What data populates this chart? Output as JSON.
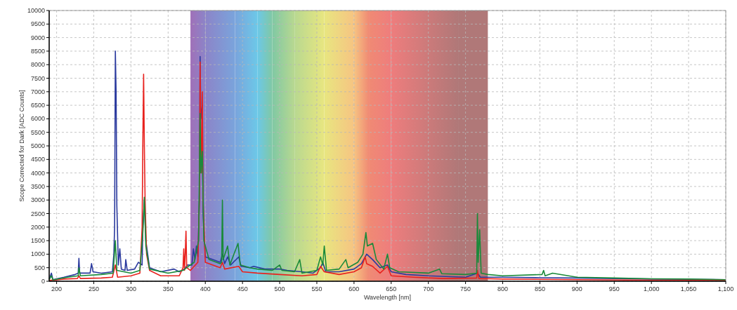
{
  "chart_data": {
    "type": "line",
    "xlabel": "Wavelength [nm]",
    "ylabel": "Scope Corrected for Dark [ADC Counts]",
    "xlim": [
      190,
      1100
    ],
    "ylim": [
      0,
      10000
    ],
    "xticks": [
      200,
      250,
      300,
      350,
      400,
      450,
      500,
      550,
      600,
      650,
      700,
      750,
      800,
      850,
      900,
      950,
      {
        "value": 1000,
        "label": "1,000"
      },
      {
        "value": 1050,
        "label": "1,050"
      },
      {
        "value": 1100,
        "label": "1,100"
      }
    ],
    "yticks": [
      0,
      500,
      1000,
      1500,
      2000,
      2500,
      3000,
      3500,
      4000,
      4500,
      5000,
      5500,
      6000,
      6500,
      7000,
      7500,
      8000,
      8500,
      9000,
      9500,
      10000
    ],
    "grid": true,
    "line_style": "solid",
    "marker": "none",
    "bands": [
      {
        "axis": "x",
        "from": 380,
        "to": 400,
        "color": "#a070b8"
      },
      {
        "axis": "x",
        "from": 400,
        "to": 440,
        "color": "#8c84c8"
      },
      {
        "axis": "x",
        "from": 440,
        "to": 470,
        "color": "#7aa4dc"
      },
      {
        "axis": "x",
        "from": 470,
        "to": 490,
        "color": "#6cc8e8"
      },
      {
        "axis": "x",
        "from": 490,
        "to": 520,
        "color": "#80c8a4"
      },
      {
        "axis": "x",
        "from": 520,
        "to": 560,
        "color": "#b8d890"
      },
      {
        "axis": "x",
        "from": 560,
        "to": 600,
        "color": "#e8e680"
      },
      {
        "axis": "x",
        "from": 600,
        "to": 620,
        "color": "#f6c482"
      },
      {
        "axis": "x",
        "from": 620,
        "to": 650,
        "color": "#f08a74"
      },
      {
        "axis": "x",
        "from": 650,
        "to": 740,
        "color": "#ee7d7d"
      },
      {
        "axis": "x",
        "from": 740,
        "to": 780,
        "color": "#b07878"
      }
    ],
    "series": [
      {
        "color": "#2b3a9e",
        "x": [
          190,
          193,
          195,
          210,
          225,
          229,
          230,
          231,
          245,
          247,
          249,
          260,
          275,
          277,
          278,
          279,
          280,
          281,
          283,
          285,
          287,
          292,
          293,
          295,
          305,
          310,
          315,
          316,
          318,
          320,
          325,
          340,
          358,
          365,
          372,
          376,
          382,
          384,
          386,
          388,
          390,
          392,
          393,
          394,
          396,
          397,
          400,
          410,
          420,
          423,
          426,
          430,
          434,
          445,
          448,
          460,
          465,
          480,
          500,
          510,
          530,
          545,
          555,
          558,
          562,
          580,
          600,
          610,
          617,
          625,
          635,
          645,
          650,
          670,
          700,
          730,
          750,
          766,
          770,
          800,
          850,
          900,
          950,
          1000,
          1050,
          1100
        ],
        "values": [
          80,
          300,
          60,
          150,
          250,
          300,
          850,
          300,
          300,
          650,
          350,
          300,
          350,
          1000,
          2000,
          8500,
          7000,
          2800,
          600,
          1200,
          450,
          400,
          800,
          400,
          450,
          700,
          600,
          2000,
          3000,
          1500,
          500,
          350,
          450,
          350,
          450,
          600,
          600,
          1200,
          800,
          1300,
          900,
          3000,
          8300,
          6000,
          6500,
          2500,
          900,
          800,
          700,
          1000,
          650,
          900,
          600,
          900,
          550,
          500,
          550,
          450,
          450,
          400,
          350,
          300,
          500,
          700,
          350,
          350,
          450,
          650,
          1000,
          800,
          500,
          600,
          350,
          250,
          200,
          170,
          150,
          300,
          150,
          150,
          130,
          120,
          100,
          80,
          70,
          60
        ]
      },
      {
        "color": "#e8221e",
        "x": [
          190,
          210,
          228,
          230,
          232,
          260,
          275,
          279,
          282,
          300,
          312,
          315,
          316,
          317,
          318,
          319,
          321,
          325,
          340,
          365,
          370,
          371,
          372,
          373,
          374,
          375,
          380,
          390,
          392,
          393,
          394,
          395,
          396,
          397,
          400,
          420,
          423,
          426,
          445,
          450,
          470,
          500,
          530,
          550,
          555,
          560,
          580,
          600,
          610,
          615,
          617,
          625,
          635,
          645,
          650,
          680,
          720,
          765,
          766,
          768,
          800,
          900,
          1000,
          1100
        ],
        "values": [
          30,
          80,
          100,
          200,
          100,
          120,
          150,
          600,
          150,
          200,
          300,
          2000,
          5200,
          7650,
          5000,
          3000,
          1000,
          400,
          200,
          200,
          500,
          1200,
          400,
          1000,
          1850,
          500,
          400,
          700,
          3000,
          8100,
          5000,
          4000,
          7000,
          3000,
          700,
          500,
          700,
          450,
          550,
          350,
          300,
          250,
          200,
          250,
          550,
          350,
          250,
          350,
          500,
          900,
          650,
          550,
          300,
          550,
          200,
          150,
          100,
          120,
          400,
          100,
          80,
          60,
          40,
          30
        ]
      },
      {
        "color": "#1a8a3a",
        "x": [
          190,
          193,
          195,
          215,
          229,
          230,
          232,
          260,
          276,
          279,
          281,
          300,
          312,
          316,
          318,
          320,
          325,
          350,
          370,
          375,
          385,
          391,
          393,
          394,
          396,
          398,
          405,
          420,
          422,
          423,
          424,
          430,
          433,
          444,
          447,
          460,
          470,
          490,
          500,
          503,
          520,
          527,
          530,
          550,
          555,
          558,
          560,
          563,
          580,
          589,
          592,
          605,
          612,
          616,
          618,
          625,
          630,
          640,
          645,
          648,
          660,
          700,
          715,
          718,
          750,
          765,
          766,
          767,
          769,
          771,
          780,
          800,
          853,
          855,
          857,
          867,
          900,
          950,
          1000,
          1050,
          1100
        ],
        "values": [
          60,
          200,
          50,
          150,
          200,
          500,
          200,
          250,
          300,
          1500,
          400,
          300,
          400,
          1800,
          3100,
          1300,
          450,
          300,
          400,
          500,
          700,
          1500,
          6200,
          4000,
          4800,
          1500,
          800,
          650,
          700,
          3000,
          800,
          1300,
          600,
          1400,
          600,
          500,
          450,
          400,
          600,
          400,
          350,
          800,
          300,
          400,
          900,
          600,
          1300,
          400,
          450,
          800,
          500,
          700,
          1000,
          1800,
          1300,
          1400,
          800,
          450,
          1000,
          500,
          350,
          300,
          450,
          280,
          250,
          300,
          2500,
          700,
          1900,
          300,
          250,
          200,
          250,
          400,
          200,
          300,
          150,
          120,
          90,
          80,
          60
        ]
      }
    ]
  }
}
